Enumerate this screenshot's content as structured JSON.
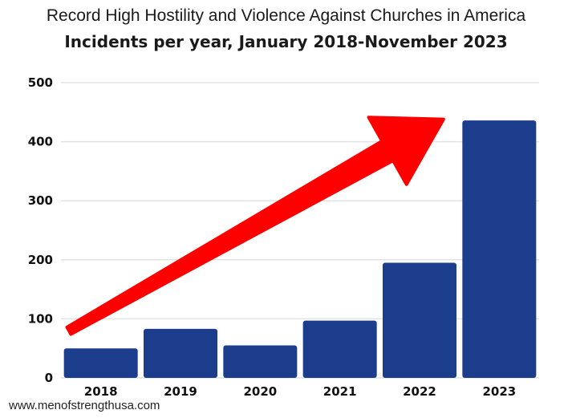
{
  "chart_data": {
    "type": "bar",
    "title": "Record High Hostility and Violence Against Churches in America",
    "subtitle": "Incidents per year, January 2018-November 2023",
    "categories": [
      "2018",
      "2019",
      "2020",
      "2021",
      "2022",
      "2023"
    ],
    "values": [
      50,
      83,
      55,
      97,
      195,
      436
    ],
    "ylim": [
      0,
      500
    ],
    "yticks": [
      0,
      100,
      200,
      300,
      400,
      500
    ],
    "grid": true,
    "annotation": "upward red arrow from 2018 to 2023",
    "bar_color": "#1c3d8c",
    "arrow_color": "#ff0000",
    "gridline_color": "#e3e3e3"
  },
  "source": "www.menofstrengthusa.com"
}
